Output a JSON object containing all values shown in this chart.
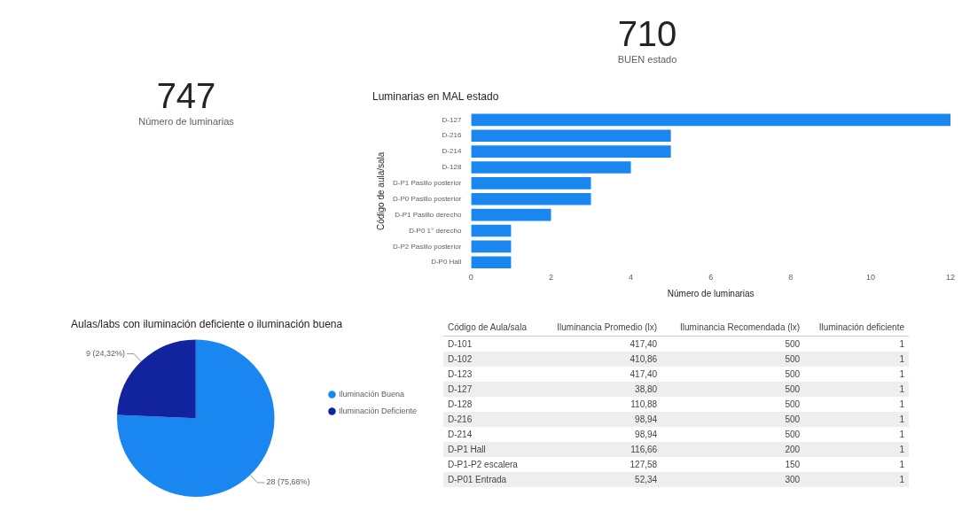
{
  "chart_data": [
    {
      "type": "other",
      "categories": [
        "Número de luminarias"
      ],
      "values": [
        747
      ],
      "data_labels": true
    },
    {
      "type": "other",
      "categories": [
        "BUEN estado"
      ],
      "values": [
        710
      ],
      "data_labels": true
    },
    {
      "type": "bar",
      "orientation": "horizontal",
      "title": "Luminarias en MAL estado",
      "xlabel": "Número de luminarias",
      "ylabel": "Código de aula/sala",
      "categories": [
        "D-127",
        "D-216",
        "D-214",
        "D-128",
        "D-P1 Pasillo posterior",
        "D-P0 Pasillo posterior",
        "D-P1 Pasillo derecho",
        "D-P0 1° derecho",
        "D-P2 Pasillo posterior",
        "D-P0 Hall"
      ],
      "values": [
        12,
        5,
        5,
        4,
        3,
        3,
        2,
        1,
        1,
        1
      ],
      "color": "#1a87f0",
      "xlim": [
        0,
        12
      ],
      "xticks": [
        0,
        2,
        4,
        6,
        8,
        10,
        12
      ]
    },
    {
      "type": "pie",
      "title": "Aulas/labs con iluminación deficiente o iluminación buena",
      "categories": [
        "Iluminación Buena",
        "Iluminación Deficiente"
      ],
      "values": [
        28,
        9
      ],
      "colors": [
        "#1a87f0",
        "#12239e"
      ],
      "value_labels": [
        "28 (75,68%)",
        "9 (24,32%)"
      ],
      "legend": "right"
    },
    {
      "type": "other",
      "categories": [
        "Código de Aula/sala",
        "Iluminancia Promedio (lx)",
        "Iluminancia Recomendada (lx)",
        "Iluminación deficiente"
      ],
      "cell_labels": [
        [
          "D-101",
          "417,40",
          "500",
          "1"
        ],
        [
          "D-102",
          "410,86",
          "500",
          "1"
        ],
        [
          "D-123",
          "417,40",
          "500",
          "1"
        ],
        [
          "D-127",
          "38,80",
          "500",
          "1"
        ],
        [
          "D-128",
          "110,88",
          "500",
          "1"
        ],
        [
          "D-216",
          "98,94",
          "500",
          "1"
        ],
        [
          "D-214",
          "98,94",
          "500",
          "1"
        ],
        [
          "D-P1 Hall",
          "116,66",
          "200",
          "1"
        ],
        [
          "D-P1-P2 escalera",
          "127,58",
          "150",
          "1"
        ],
        [
          "D-P01 Entrada",
          "52,34",
          "300",
          "1"
        ]
      ]
    }
  ]
}
